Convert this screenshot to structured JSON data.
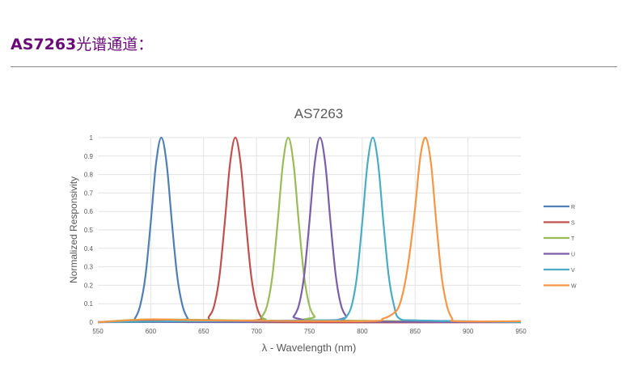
{
  "header": {
    "title_bold": "AS7263",
    "title_cn": "光谱通道："
  },
  "chart_data": {
    "type": "line",
    "title": "AS7263",
    "xlabel": "λ - Wavelength (nm)",
    "ylabel": "Normalized Responsivity",
    "xlim": [
      550,
      950
    ],
    "ylim": [
      0,
      1
    ],
    "xticks": [
      550,
      600,
      650,
      700,
      750,
      800,
      850,
      900,
      950
    ],
    "yticks": [
      0,
      0.1,
      0.2,
      0.3,
      0.4,
      0.5,
      0.6,
      0.7,
      0.8,
      0.9,
      1
    ],
    "ytick_labels": [
      "0",
      "0.1",
      "0.2",
      "0.3",
      "0.4",
      "0.5",
      "0.6",
      "0.7",
      "0.8",
      "0.9",
      "1"
    ],
    "grid": true,
    "legend": "right",
    "series": [
      {
        "name": "R",
        "color": "#4f7fb5",
        "points": [
          [
            550,
            0
          ],
          [
            580,
            0.005
          ],
          [
            585,
            0.02
          ],
          [
            590,
            0.09
          ],
          [
            595,
            0.25
          ],
          [
            600,
            0.54
          ],
          [
            605,
            0.86
          ],
          [
            610,
            1
          ],
          [
            615,
            0.86
          ],
          [
            620,
            0.54
          ],
          [
            625,
            0.25
          ],
          [
            630,
            0.09
          ],
          [
            635,
            0.02
          ],
          [
            640,
            0
          ],
          [
            950,
            0
          ]
        ]
      },
      {
        "name": "S",
        "color": "#c0504d",
        "points": [
          [
            550,
            0
          ],
          [
            600,
            0.01
          ],
          [
            650,
            0.01
          ],
          [
            655,
            0.03
          ],
          [
            660,
            0.09
          ],
          [
            665,
            0.25
          ],
          [
            670,
            0.54
          ],
          [
            675,
            0.86
          ],
          [
            680,
            1
          ],
          [
            685,
            0.86
          ],
          [
            690,
            0.54
          ],
          [
            695,
            0.25
          ],
          [
            700,
            0.09
          ],
          [
            705,
            0.02
          ],
          [
            710,
            0
          ],
          [
            950,
            0
          ]
        ]
      },
      {
        "name": "T",
        "color": "#9bbb59",
        "points": [
          [
            550,
            0
          ],
          [
            600,
            0.015
          ],
          [
            700,
            0.01
          ],
          [
            705,
            0.03
          ],
          [
            710,
            0.09
          ],
          [
            715,
            0.25
          ],
          [
            720,
            0.54
          ],
          [
            725,
            0.86
          ],
          [
            730,
            1
          ],
          [
            735,
            0.86
          ],
          [
            740,
            0.54
          ],
          [
            745,
            0.25
          ],
          [
            750,
            0.09
          ],
          [
            755,
            0.03
          ],
          [
            760,
            0.01
          ],
          [
            950,
            0
          ]
        ]
      },
      {
        "name": "U",
        "color": "#7b5ea7",
        "points": [
          [
            550,
            0
          ],
          [
            730,
            0.005
          ],
          [
            735,
            0.03
          ],
          [
            740,
            0.09
          ],
          [
            745,
            0.25
          ],
          [
            750,
            0.54
          ],
          [
            755,
            0.86
          ],
          [
            760,
            1
          ],
          [
            765,
            0.86
          ],
          [
            770,
            0.54
          ],
          [
            775,
            0.25
          ],
          [
            780,
            0.09
          ],
          [
            785,
            0.03
          ],
          [
            790,
            0.005
          ],
          [
            950,
            0
          ]
        ]
      },
      {
        "name": "V",
        "color": "#4bacc6",
        "points": [
          [
            550,
            0
          ],
          [
            640,
            0.005
          ],
          [
            760,
            0.01
          ],
          [
            780,
            0.015
          ],
          [
            785,
            0.03
          ],
          [
            790,
            0.09
          ],
          [
            795,
            0.25
          ],
          [
            800,
            0.54
          ],
          [
            805,
            0.86
          ],
          [
            810,
            1
          ],
          [
            815,
            0.86
          ],
          [
            820,
            0.54
          ],
          [
            825,
            0.25
          ],
          [
            830,
            0.09
          ],
          [
            835,
            0.02
          ],
          [
            850,
            0.01
          ],
          [
            900,
            0.005
          ],
          [
            950,
            0
          ]
        ]
      },
      {
        "name": "W",
        "color": "#f79646",
        "points": [
          [
            550,
            0
          ],
          [
            600,
            0.015
          ],
          [
            650,
            0.01
          ],
          [
            800,
            0.005
          ],
          [
            820,
            0.02
          ],
          [
            830,
            0.05
          ],
          [
            835,
            0.09
          ],
          [
            840,
            0.2
          ],
          [
            845,
            0.38
          ],
          [
            850,
            0.62
          ],
          [
            855,
            0.9
          ],
          [
            860,
            1
          ],
          [
            865,
            0.86
          ],
          [
            870,
            0.54
          ],
          [
            875,
            0.25
          ],
          [
            880,
            0.09
          ],
          [
            885,
            0.02
          ],
          [
            890,
            0.005
          ],
          [
            950,
            0.005
          ]
        ]
      }
    ]
  }
}
